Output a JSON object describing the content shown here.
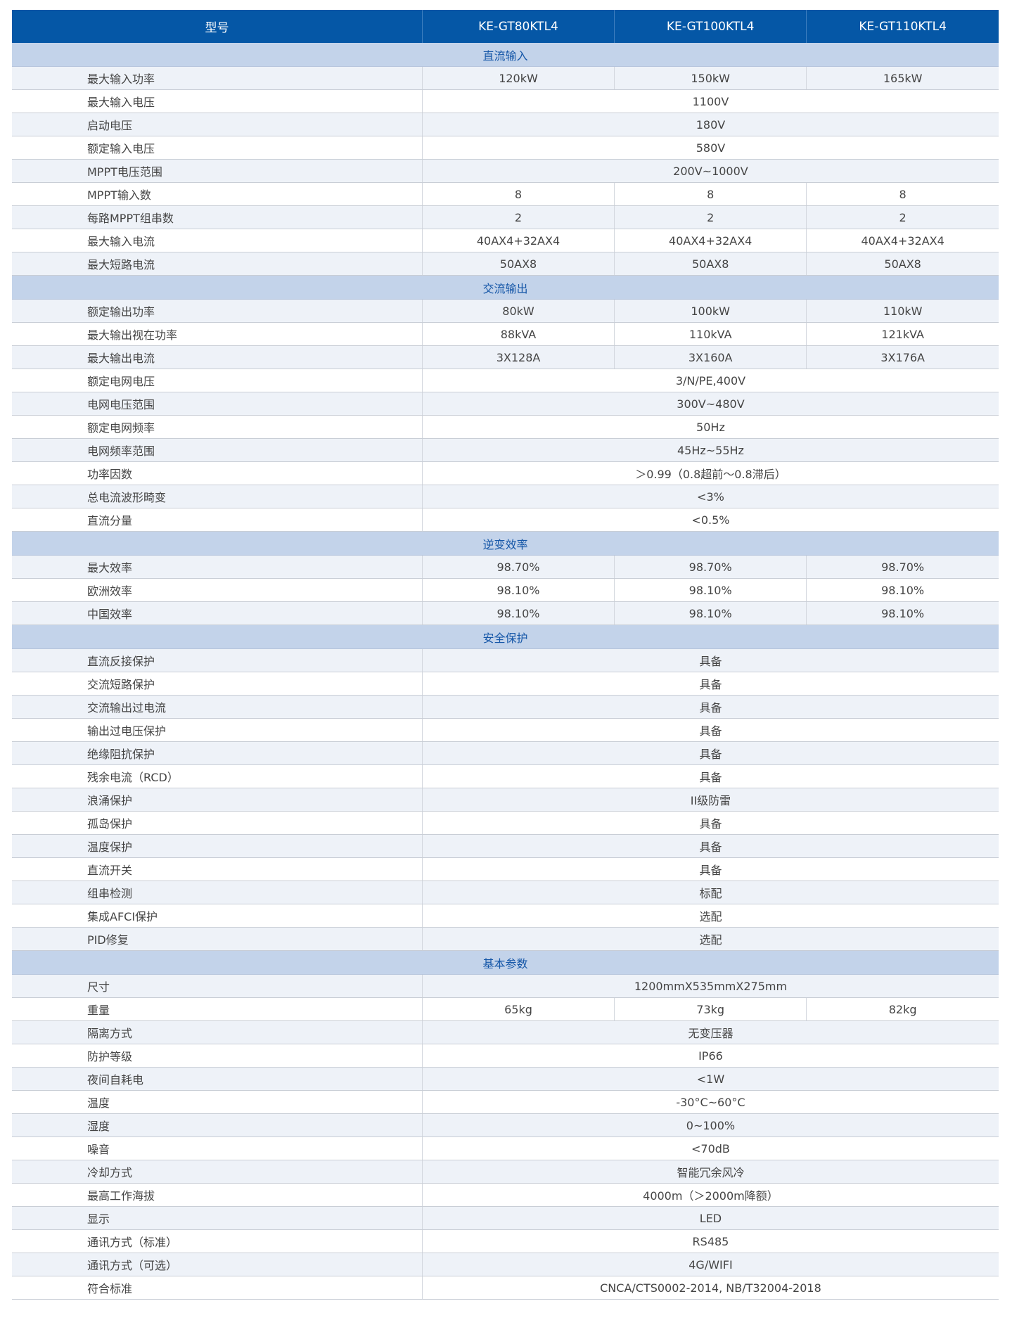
{
  "header": {
    "label": "型号",
    "models": [
      "KE-GT80KTL4",
      "KE-GT100KTL4",
      "KE-GT110KTL4"
    ]
  },
  "colors": {
    "header_bg": "#0557a6",
    "section_bg": "#c3d3ea",
    "section_text": "#1657a8",
    "stripe": "#eef2f8"
  },
  "sections": [
    {
      "title": "直流输入",
      "rows": [
        {
          "label": "最大输入功率",
          "values": [
            "120kW",
            "150kW",
            "165kW"
          ]
        },
        {
          "label": "最大输入电压",
          "values": [
            "1100V"
          ]
        },
        {
          "label": "启动电压",
          "values": [
            "180V"
          ]
        },
        {
          "label": "额定输入电压",
          "values": [
            "580V"
          ]
        },
        {
          "label": "MPPT电压范围",
          "values": [
            "200V~1000V"
          ]
        },
        {
          "label": "MPPT输入数",
          "values": [
            "8",
            "8",
            "8"
          ]
        },
        {
          "label": "每路MPPT组串数",
          "values": [
            "2",
            "2",
            "2"
          ]
        },
        {
          "label": "最大输入电流",
          "values": [
            "40AX4+32AX4",
            "40AX4+32AX4",
            "40AX4+32AX4"
          ]
        },
        {
          "label": "最大短路电流",
          "values": [
            "50AX8",
            "50AX8",
            "50AX8"
          ]
        }
      ]
    },
    {
      "title": "交流输出",
      "rows": [
        {
          "label": "额定输出功率",
          "values": [
            "80kW",
            "100kW",
            "110kW"
          ]
        },
        {
          "label": "最大输出视在功率",
          "values": [
            "88kVA",
            "110kVA",
            "121kVA"
          ]
        },
        {
          "label": "最大输出电流",
          "values": [
            "3X128A",
            "3X160A",
            "3X176A"
          ]
        },
        {
          "label": "额定电网电压",
          "values": [
            "3/N/PE,400V"
          ]
        },
        {
          "label": "电网电压范围",
          "values": [
            "300V~480V"
          ]
        },
        {
          "label": "额定电网频率",
          "values": [
            "50Hz"
          ]
        },
        {
          "label": "电网频率范围",
          "values": [
            "45Hz~55Hz"
          ]
        },
        {
          "label": "功率因数",
          "values": [
            "＞0.99（0.8超前～0.8滞后）"
          ]
        },
        {
          "label": "总电流波形畸变",
          "values": [
            "<3%"
          ]
        },
        {
          "label": "直流分量",
          "values": [
            "<0.5%"
          ]
        }
      ]
    },
    {
      "title": "逆变效率",
      "rows": [
        {
          "label": "最大效率",
          "values": [
            "98.70%",
            "98.70%",
            "98.70%"
          ]
        },
        {
          "label": "欧洲效率",
          "values": [
            "98.10%",
            "98.10%",
            "98.10%"
          ]
        },
        {
          "label": "中国效率",
          "values": [
            "98.10%",
            "98.10%",
            "98.10%"
          ]
        }
      ]
    },
    {
      "title": "安全保护",
      "rows": [
        {
          "label": "直流反接保护",
          "values": [
            "具备"
          ]
        },
        {
          "label": "交流短路保护",
          "values": [
            "具备"
          ]
        },
        {
          "label": "交流输出过电流",
          "values": [
            "具备"
          ]
        },
        {
          "label": "输出过电压保护",
          "values": [
            "具备"
          ]
        },
        {
          "label": "绝缘阻抗保护",
          "values": [
            "具备"
          ]
        },
        {
          "label": "残余电流（RCD）",
          "values": [
            "具备"
          ]
        },
        {
          "label": "浪涌保护",
          "values": [
            "II级防雷"
          ]
        },
        {
          "label": "孤岛保护",
          "values": [
            "具备"
          ]
        },
        {
          "label": "温度保护",
          "values": [
            "具备"
          ]
        },
        {
          "label": "直流开关",
          "values": [
            "具备"
          ]
        },
        {
          "label": "组串检测",
          "values": [
            "标配"
          ]
        },
        {
          "label": "集成AFCI保护",
          "values": [
            "选配"
          ]
        },
        {
          "label": "PID修复",
          "values": [
            "选配"
          ]
        }
      ]
    },
    {
      "title": "基本参数",
      "rows": [
        {
          "label": "尺寸",
          "values": [
            "1200mmX535mmX275mm"
          ]
        },
        {
          "label": "重量",
          "values": [
            "65kg",
            "73kg",
            "82kg"
          ]
        },
        {
          "label": "隔离方式",
          "values": [
            "无变压器"
          ]
        },
        {
          "label": "防护等级",
          "values": [
            "IP66"
          ]
        },
        {
          "label": "夜间自耗电",
          "values": [
            "<1W"
          ]
        },
        {
          "label": "温度",
          "values": [
            "-30°C~60°C"
          ]
        },
        {
          "label": "湿度",
          "values": [
            "0~100%"
          ]
        },
        {
          "label": "噪音",
          "values": [
            "<70dB"
          ]
        },
        {
          "label": "冷却方式",
          "values": [
            "智能冗余风冷"
          ]
        },
        {
          "label": "最高工作海拔",
          "values": [
            "4000m（＞2000m降额）"
          ]
        },
        {
          "label": "显示",
          "values": [
            "LED"
          ]
        },
        {
          "label": "通讯方式（标准）",
          "values": [
            "RS485"
          ]
        },
        {
          "label": "通讯方式（可选）",
          "values": [
            "4G/WIFI"
          ]
        },
        {
          "label": "符合标准",
          "values": [
            "CNCA/CTS0002-2014, NB/T32004-2018"
          ]
        }
      ]
    }
  ]
}
